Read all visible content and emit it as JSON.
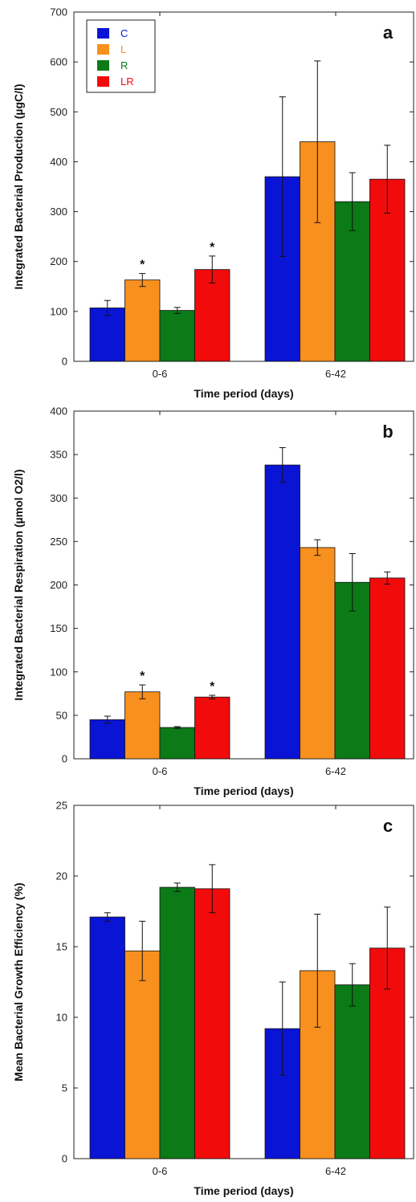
{
  "colors": {
    "C": "#0a14d4",
    "L": "#f7901e",
    "R": "#0b7a17",
    "LR": "#f20b0b"
  },
  "legend": [
    {
      "key": "C",
      "label": "C"
    },
    {
      "key": "L",
      "label": "L"
    },
    {
      "key": "R",
      "label": "R"
    },
    {
      "key": "LR",
      "label": "LR"
    }
  ],
  "chart_data": [
    {
      "type": "bar",
      "panel_label": "a",
      "title": "",
      "xlabel": "Time period (days)",
      "ylabel": "Integrated Bacterial Production (µgC/l)",
      "ylim": [
        0,
        700
      ],
      "yticks": [
        0,
        100,
        200,
        300,
        400,
        500,
        600,
        700
      ],
      "categories": [
        "0-6",
        "6-42"
      ],
      "series": [
        {
          "name": "C",
          "values": [
            107,
            370
          ],
          "errors": [
            15,
            160
          ],
          "significant": [
            false,
            false
          ]
        },
        {
          "name": "L",
          "values": [
            163,
            440
          ],
          "errors": [
            13,
            162
          ],
          "significant": [
            true,
            false
          ]
        },
        {
          "name": "R",
          "values": [
            102,
            320
          ],
          "errors": [
            6,
            58
          ],
          "significant": [
            false,
            false
          ]
        },
        {
          "name": "LR",
          "values": [
            184,
            365
          ],
          "errors": [
            27,
            68
          ],
          "significant": [
            true,
            false
          ]
        }
      ],
      "legend_position": "top-left"
    },
    {
      "type": "bar",
      "panel_label": "b",
      "title": "",
      "xlabel": "Time period (days)",
      "ylabel": "Integrated Bacterial Respiration (µmol O2/l)",
      "ylim": [
        0,
        400
      ],
      "yticks": [
        0,
        50,
        100,
        150,
        200,
        250,
        300,
        350,
        400
      ],
      "categories": [
        "0-6",
        "6-42"
      ],
      "series": [
        {
          "name": "C",
          "values": [
            45,
            338
          ],
          "errors": [
            4,
            20
          ],
          "significant": [
            false,
            false
          ]
        },
        {
          "name": "L",
          "values": [
            77,
            243
          ],
          "errors": [
            8,
            9
          ],
          "significant": [
            true,
            false
          ]
        },
        {
          "name": "R",
          "values": [
            36,
            203
          ],
          "errors": [
            1,
            33
          ],
          "significant": [
            false,
            false
          ]
        },
        {
          "name": "LR",
          "values": [
            71,
            208
          ],
          "errors": [
            2,
            7
          ],
          "significant": [
            true,
            false
          ]
        }
      ]
    },
    {
      "type": "bar",
      "panel_label": "c",
      "title": "",
      "xlabel": "Time period (days)",
      "ylabel": "Mean Bacterial Growth Efficiency (%)",
      "ylim": [
        0,
        25
      ],
      "yticks": [
        0,
        5,
        10,
        15,
        20,
        25
      ],
      "categories": [
        "0-6",
        "6-42"
      ],
      "series": [
        {
          "name": "C",
          "values": [
            17.1,
            9.2
          ],
          "errors": [
            0.3,
            3.3
          ],
          "significant": [
            false,
            false
          ]
        },
        {
          "name": "L",
          "values": [
            14.7,
            13.3
          ],
          "errors": [
            2.1,
            4.0
          ],
          "significant": [
            false,
            false
          ]
        },
        {
          "name": "R",
          "values": [
            19.2,
            12.3
          ],
          "errors": [
            0.3,
            1.5
          ],
          "significant": [
            false,
            false
          ]
        },
        {
          "name": "LR",
          "values": [
            19.1,
            14.9
          ],
          "errors": [
            1.7,
            2.9
          ],
          "significant": [
            false,
            false
          ]
        }
      ]
    }
  ]
}
